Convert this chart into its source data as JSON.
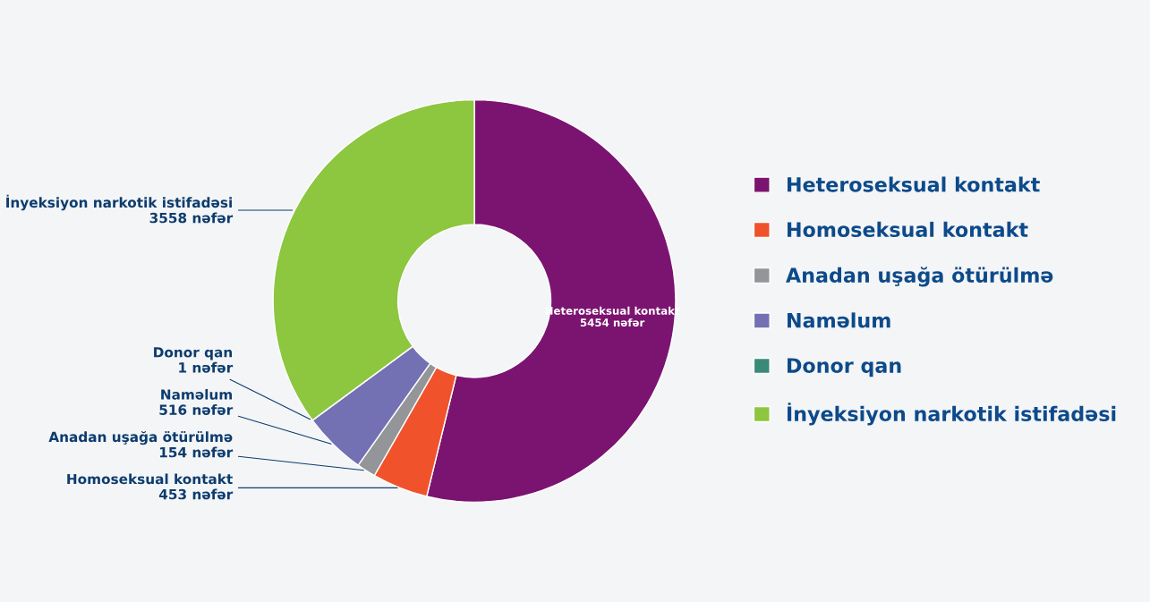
{
  "chart_data": {
    "type": "donut",
    "categories": [
      "Heteroseksual kontakt",
      "Homoseksual kontakt",
      "Anadan uşağa ötürülmə",
      "Naməlum",
      "Donor qan",
      "İnyeksiyon narkotik istifadəsi"
    ],
    "values": [
      5454,
      453,
      154,
      516,
      1,
      3558
    ],
    "colors": [
      "#7b1470",
      "#f0532b",
      "#939598",
      "#7470b4",
      "#3a8a7a",
      "#8dc63f"
    ],
    "value_labels": [
      "5454 nəfər",
      "453 nəfər",
      "154 nəfər",
      "516 nəfər",
      "1 nəfər",
      "3558 nəfər"
    ],
    "legend": "right"
  }
}
